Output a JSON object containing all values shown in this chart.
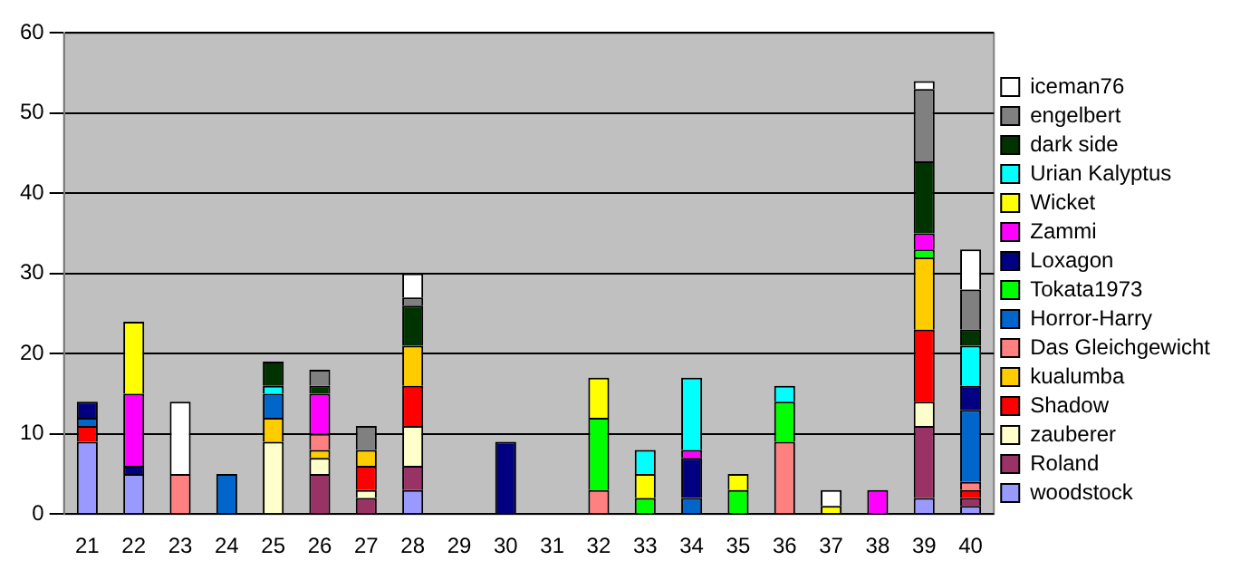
{
  "chart_data": {
    "type": "bar",
    "stacked": true,
    "categories": [
      "21",
      "22",
      "23",
      "24",
      "25",
      "26",
      "27",
      "28",
      "29",
      "30",
      "31",
      "32",
      "33",
      "34",
      "35",
      "36",
      "37",
      "38",
      "39",
      "40"
    ],
    "ylim": [
      0,
      60
    ],
    "yticks": [
      0,
      10,
      20,
      30,
      40,
      50,
      60
    ],
    "grid": "y",
    "legend": "right",
    "series": [
      {
        "name": "woodstock",
        "color": "#9999ff",
        "values": [
          9,
          5,
          null,
          null,
          null,
          null,
          null,
          3,
          null,
          null,
          null,
          null,
          null,
          null,
          null,
          null,
          null,
          null,
          2,
          1
        ]
      },
      {
        "name": "Roland",
        "color": "#993366",
        "values": [
          null,
          null,
          null,
          null,
          null,
          5,
          2,
          3,
          null,
          null,
          null,
          null,
          null,
          null,
          null,
          null,
          null,
          null,
          9,
          1
        ]
      },
      {
        "name": "zauberer",
        "color": "#ffffcc",
        "values": [
          null,
          null,
          null,
          null,
          9,
          2,
          1,
          5,
          null,
          null,
          null,
          null,
          null,
          null,
          null,
          null,
          null,
          null,
          3,
          null
        ]
      },
      {
        "name": "Shadow",
        "color": "#ff0000",
        "values": [
          2,
          null,
          null,
          null,
          null,
          null,
          3,
          5,
          null,
          null,
          null,
          null,
          null,
          null,
          null,
          null,
          null,
          null,
          9,
          1
        ]
      },
      {
        "name": "kualumba",
        "color": "#ffcc00",
        "values": [
          null,
          null,
          null,
          null,
          3,
          1,
          2,
          5,
          null,
          null,
          null,
          null,
          null,
          null,
          null,
          null,
          null,
          null,
          9,
          null
        ]
      },
      {
        "name": "Das Gleichgewicht",
        "color": "#ff8080",
        "values": [
          null,
          null,
          5,
          null,
          null,
          2,
          null,
          null,
          null,
          null,
          null,
          3,
          null,
          null,
          null,
          9,
          null,
          null,
          null,
          1
        ]
      },
      {
        "name": "Horror-Harry",
        "color": "#0066cc",
        "values": [
          1,
          null,
          null,
          5,
          3,
          null,
          null,
          null,
          null,
          null,
          null,
          null,
          null,
          2,
          null,
          null,
          null,
          null,
          null,
          9
        ]
      },
      {
        "name": "Tokata1973",
        "color": "#00ff00",
        "values": [
          null,
          null,
          null,
          null,
          null,
          null,
          null,
          null,
          null,
          null,
          null,
          9,
          2,
          null,
          3,
          5,
          null,
          null,
          1,
          null
        ]
      },
      {
        "name": "Loxagon",
        "color": "#000080",
        "values": [
          2,
          1,
          null,
          null,
          null,
          null,
          null,
          null,
          null,
          9,
          null,
          null,
          null,
          5,
          null,
          null,
          null,
          null,
          null,
          3
        ]
      },
      {
        "name": "Zammi",
        "color": "#ff00ff",
        "values": [
          null,
          9,
          null,
          null,
          null,
          5,
          null,
          null,
          null,
          null,
          null,
          null,
          null,
          1,
          null,
          null,
          null,
          3,
          2,
          null
        ]
      },
      {
        "name": "Wicket",
        "color": "#ffff00",
        "values": [
          null,
          9,
          null,
          null,
          null,
          null,
          null,
          null,
          null,
          null,
          null,
          5,
          3,
          null,
          2,
          null,
          1,
          null,
          null,
          null
        ]
      },
      {
        "name": "Urian Kalyptus",
        "color": "#00ffff",
        "values": [
          null,
          null,
          null,
          null,
          1,
          null,
          null,
          null,
          null,
          null,
          null,
          null,
          3,
          9,
          null,
          2,
          null,
          null,
          null,
          5
        ]
      },
      {
        "name": "dark side",
        "color": "#003300",
        "values": [
          null,
          null,
          null,
          null,
          3,
          1,
          null,
          5,
          null,
          null,
          null,
          null,
          null,
          null,
          null,
          null,
          null,
          null,
          9,
          2
        ]
      },
      {
        "name": "engelbert",
        "color": "#808080",
        "values": [
          null,
          null,
          null,
          null,
          null,
          2,
          3,
          1,
          null,
          null,
          null,
          null,
          null,
          null,
          null,
          null,
          null,
          null,
          9,
          5
        ]
      },
      {
        "name": "iceman76",
        "color": "#ffffff",
        "values": [
          null,
          null,
          9,
          null,
          null,
          null,
          null,
          3,
          null,
          null,
          null,
          null,
          null,
          null,
          null,
          null,
          2,
          null,
          1,
          5
        ]
      }
    ]
  }
}
